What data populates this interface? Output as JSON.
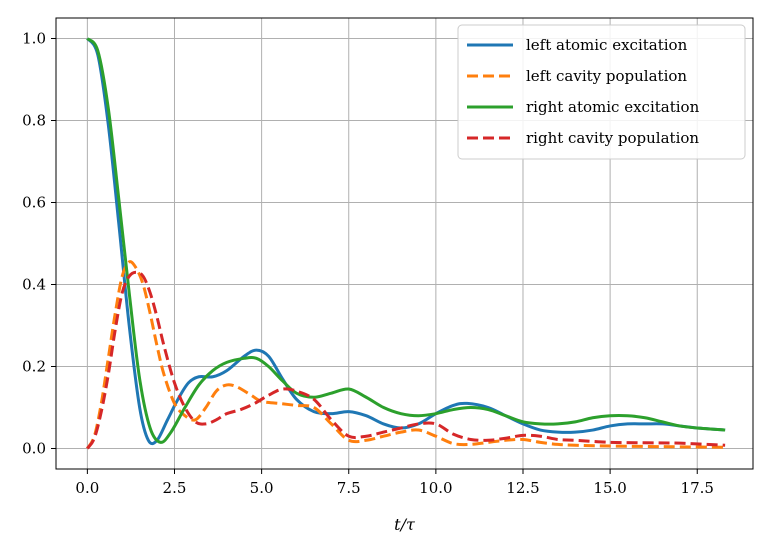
{
  "chart_data": {
    "type": "line",
    "xlabel": "t/τ",
    "ylabel": "",
    "xlim": [
      -0.9,
      19.1
    ],
    "ylim": [
      -0.05,
      1.05
    ],
    "grid": true,
    "legend_position": "top-right",
    "xticks": [
      0.0,
      2.5,
      5.0,
      7.5,
      10.0,
      12.5,
      15.0,
      17.5
    ],
    "xtick_labels": [
      "0.0",
      "2.5",
      "5.0",
      "7.5",
      "10.0",
      "12.5",
      "15.0",
      "17.5"
    ],
    "yticks": [
      0.0,
      0.2,
      0.4,
      0.6,
      0.8,
      1.0
    ],
    "ytick_labels": [
      "0.0",
      "0.2",
      "0.4",
      "0.6",
      "0.8",
      "1.0"
    ],
    "series": [
      {
        "name": "left atomic excitation",
        "color": "#1f77b4",
        "style": "solid",
        "x": [
          0,
          0.3,
          0.6,
          0.9,
          1.2,
          1.5,
          1.75,
          2.0,
          2.3,
          2.6,
          2.9,
          3.2,
          3.6,
          4.0,
          4.5,
          4.85,
          5.2,
          5.6,
          6.0,
          6.5,
          7.0,
          7.5,
          8.0,
          8.5,
          9.0,
          9.5,
          10.0,
          10.5,
          10.9,
          11.5,
          12.0,
          12.5,
          13.0,
          13.5,
          14.0,
          14.5,
          15.0,
          15.5,
          16.0,
          16.5,
          17.0,
          17.5,
          18.3
        ],
        "y": [
          1.0,
          0.96,
          0.79,
          0.55,
          0.3,
          0.1,
          0.02,
          0.02,
          0.07,
          0.12,
          0.16,
          0.175,
          0.175,
          0.19,
          0.225,
          0.24,
          0.225,
          0.17,
          0.12,
          0.09,
          0.085,
          0.09,
          0.08,
          0.06,
          0.05,
          0.06,
          0.085,
          0.105,
          0.11,
          0.1,
          0.08,
          0.06,
          0.045,
          0.04,
          0.04,
          0.045,
          0.055,
          0.06,
          0.06,
          0.06,
          0.055,
          0.05,
          0.045
        ]
      },
      {
        "name": "left cavity population",
        "color": "#ff7f0e",
        "style": "dashed",
        "x": [
          0,
          0.2,
          0.4,
          0.6,
          0.8,
          1.0,
          1.2,
          1.4,
          1.6,
          1.8,
          2.0,
          2.2,
          2.5,
          2.8,
          3.1,
          3.4,
          3.7,
          4.0,
          4.3,
          4.7,
          5.0,
          5.5,
          6.0,
          6.5,
          7.0,
          7.5,
          8.0,
          8.5,
          9.0,
          9.5,
          10.0,
          10.5,
          11.0,
          11.5,
          12.0,
          12.5,
          13.0,
          13.5,
          14.0,
          15.0,
          16.0,
          17.0,
          18.3
        ],
        "y": [
          0.0,
          0.03,
          0.11,
          0.22,
          0.33,
          0.42,
          0.455,
          0.44,
          0.4,
          0.33,
          0.25,
          0.18,
          0.11,
          0.08,
          0.07,
          0.1,
          0.14,
          0.155,
          0.15,
          0.13,
          0.115,
          0.11,
          0.105,
          0.1,
          0.06,
          0.02,
          0.02,
          0.03,
          0.04,
          0.045,
          0.03,
          0.012,
          0.01,
          0.015,
          0.02,
          0.022,
          0.015,
          0.01,
          0.008,
          0.006,
          0.005,
          0.004,
          0.003
        ]
      },
      {
        "name": "right atomic excitation",
        "color": "#2ca02c",
        "style": "solid",
        "x": [
          0,
          0.3,
          0.6,
          0.9,
          1.2,
          1.5,
          1.8,
          2.1,
          2.4,
          2.8,
          3.2,
          3.6,
          4.0,
          4.5,
          4.85,
          5.2,
          5.6,
          6.0,
          6.5,
          7.0,
          7.5,
          8.0,
          8.5,
          9.0,
          9.5,
          10.0,
          10.5,
          11.0,
          11.5,
          12.0,
          12.5,
          13.0,
          13.5,
          14.0,
          14.5,
          15.0,
          15.5,
          16.0,
          16.5,
          17.0,
          17.5,
          18.3
        ],
        "y": [
          1.0,
          0.97,
          0.83,
          0.61,
          0.38,
          0.17,
          0.05,
          0.015,
          0.04,
          0.1,
          0.155,
          0.19,
          0.21,
          0.22,
          0.22,
          0.2,
          0.165,
          0.135,
          0.125,
          0.135,
          0.145,
          0.125,
          0.1,
          0.085,
          0.08,
          0.085,
          0.095,
          0.1,
          0.095,
          0.08,
          0.065,
          0.06,
          0.06,
          0.065,
          0.075,
          0.08,
          0.08,
          0.075,
          0.065,
          0.055,
          0.05,
          0.045
        ]
      },
      {
        "name": "right cavity population",
        "color": "#d62728",
        "style": "dashed",
        "x": [
          0,
          0.2,
          0.4,
          0.6,
          0.8,
          1.0,
          1.2,
          1.4,
          1.6,
          1.8,
          2.0,
          2.2,
          2.5,
          2.8,
          3.1,
          3.4,
          3.7,
          4.0,
          4.4,
          4.8,
          5.2,
          5.6,
          6.0,
          6.5,
          7.0,
          7.5,
          8.0,
          8.5,
          9.0,
          9.5,
          10.0,
          10.5,
          11.0,
          11.5,
          12.0,
          12.5,
          13.0,
          13.5,
          14.0,
          15.0,
          16.0,
          17.0,
          18.3
        ],
        "y": [
          0.0,
          0.025,
          0.09,
          0.18,
          0.29,
          0.38,
          0.42,
          0.43,
          0.42,
          0.38,
          0.32,
          0.25,
          0.16,
          0.1,
          0.065,
          0.06,
          0.07,
          0.085,
          0.095,
          0.11,
          0.13,
          0.145,
          0.14,
          0.12,
          0.07,
          0.03,
          0.03,
          0.04,
          0.05,
          0.06,
          0.06,
          0.035,
          0.022,
          0.02,
          0.025,
          0.032,
          0.03,
          0.022,
          0.02,
          0.015,
          0.014,
          0.013,
          0.008
        ]
      }
    ]
  }
}
